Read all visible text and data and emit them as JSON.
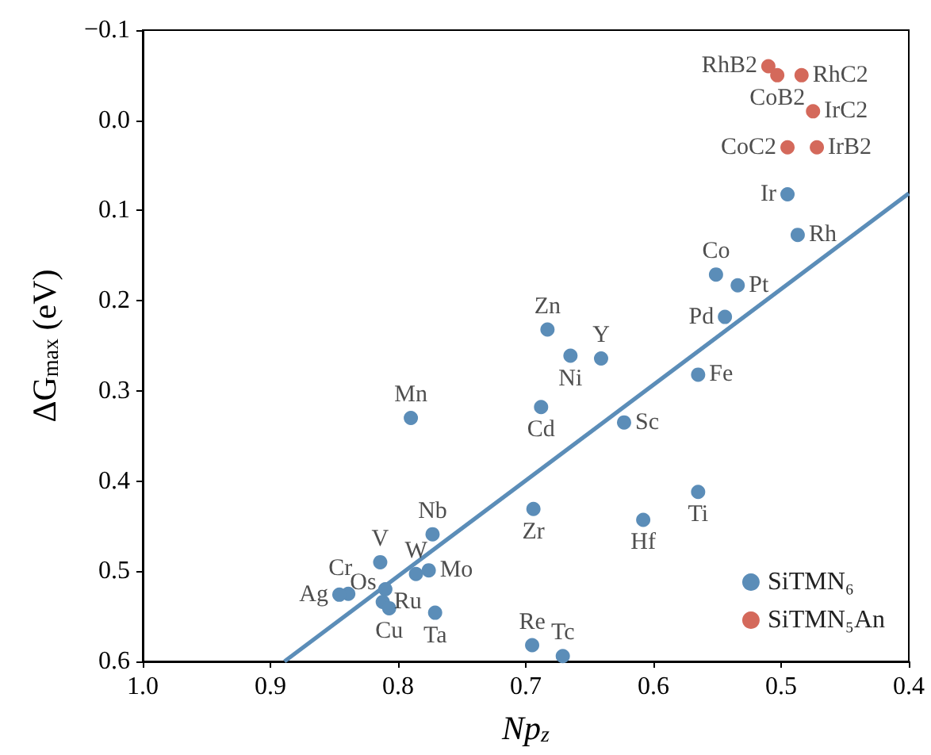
{
  "chart_data": {
    "type": "scatter",
    "xlabel": "Np$_{z}$",
    "ylabel": "ΔG$_{max}$ (eV)",
    "xlim": [
      1.0,
      0.4
    ],
    "xticks": [
      {
        "value": 1,
        "label": "1.0"
      },
      0.9,
      0.8,
      0.7,
      0.6,
      0.5,
      0.4
    ],
    "ylim": [
      0.6,
      -0.1
    ],
    "yticks": [
      {
        "value": -0.1,
        "label": "−0.1"
      },
      {
        "value": 0,
        "label": "0.0"
      },
      0.1,
      0.2,
      0.3,
      0.4,
      0.5,
      0.6
    ],
    "grid": false,
    "legend": "bottom right",
    "marker": "circle",
    "series": [
      {
        "name": "SiTMN₆",
        "color": "#5b8db8",
        "x": [
          0.495,
          0.487,
          0.551,
          0.534,
          0.544,
          0.683,
          0.665,
          0.641,
          0.565,
          0.79,
          0.688,
          0.623,
          0.565,
          0.694,
          0.608,
          0.773,
          0.814,
          0.786,
          0.776,
          0.81,
          0.839,
          0.846,
          0.812,
          0.807,
          0.771,
          0.695,
          0.671
        ],
        "values": [
          0.082,
          0.127,
          0.171,
          0.183,
          0.218,
          0.232,
          0.261,
          0.264,
          0.282,
          0.33,
          0.318,
          0.335,
          0.412,
          0.431,
          0.443,
          0.459,
          0.49,
          0.503,
          0.499,
          0.52,
          0.525,
          0.526,
          0.534,
          0.541,
          0.546,
          0.582,
          0.594
        ]
      },
      {
        "name": "SiTMN₅An",
        "color": "#d4695b",
        "x": [
          0.51,
          0.503,
          0.484,
          0.475,
          0.495,
          0.472
        ],
        "values": [
          -0.06,
          -0.05,
          -0.05,
          -0.01,
          0.03,
          0.03
        ]
      },
      {
        "type": "line",
        "color": "#5b8db8",
        "x": [
          0.889,
          0.4
        ],
        "values": [
          0.6,
          0.081
        ],
        "marker": "none"
      }
    ],
    "annotations": [
      {
        "text": "RhB2",
        "x": 0.51,
        "y": -0.06
      },
      {
        "text": "CoB2",
        "x": 0.503,
        "y": -0.05
      },
      {
        "text": "RhC2",
        "x": 0.484,
        "y": -0.05
      },
      {
        "text": "IrC2",
        "x": 0.475,
        "y": -0.01
      },
      {
        "text": "CoC2",
        "x": 0.495,
        "y": 0.03
      },
      {
        "text": "IrB2",
        "x": 0.472,
        "y": 0.03
      },
      {
        "text": "Ir",
        "x": 0.495,
        "y": 0.082
      },
      {
        "text": "Rh",
        "x": 0.487,
        "y": 0.127
      },
      {
        "text": "Co",
        "x": 0.551,
        "y": 0.171
      },
      {
        "text": "Pt",
        "x": 0.534,
        "y": 0.183
      },
      {
        "text": "Pd",
        "x": 0.544,
        "y": 0.218
      },
      {
        "text": "Zn",
        "x": 0.683,
        "y": 0.232
      },
      {
        "text": "Ni",
        "x": 0.665,
        "y": 0.261
      },
      {
        "text": "Y",
        "x": 0.641,
        "y": 0.264
      },
      {
        "text": "Fe",
        "x": 0.565,
        "y": 0.282
      },
      {
        "text": "Mn",
        "x": 0.79,
        "y": 0.33
      },
      {
        "text": "Cd",
        "x": 0.688,
        "y": 0.318
      },
      {
        "text": "Sc",
        "x": 0.623,
        "y": 0.335
      },
      {
        "text": "Ti",
        "x": 0.565,
        "y": 0.412
      },
      {
        "text": "Zr",
        "x": 0.694,
        "y": 0.431
      },
      {
        "text": "Hf",
        "x": 0.608,
        "y": 0.443
      },
      {
        "text": "Nb",
        "x": 0.773,
        "y": 0.459
      },
      {
        "text": "V",
        "x": 0.814,
        "y": 0.49
      },
      {
        "text": "W",
        "x": 0.786,
        "y": 0.503
      },
      {
        "text": "Mo",
        "x": 0.776,
        "y": 0.499
      },
      {
        "text": "Os",
        "x": 0.81,
        "y": 0.52
      },
      {
        "text": "Cr",
        "x": 0.839,
        "y": 0.525
      },
      {
        "text": "Ag",
        "x": 0.846,
        "y": 0.526
      },
      {
        "text": "Ru",
        "x": 0.812,
        "y": 0.534
      },
      {
        "text": "Cu",
        "x": 0.807,
        "y": 0.541
      },
      {
        "text": "Ta",
        "x": 0.771,
        "y": 0.546
      },
      {
        "text": "Re",
        "x": 0.695,
        "y": 0.582
      },
      {
        "text": "Tc",
        "x": 0.671,
        "y": 0.594
      }
    ]
  }
}
